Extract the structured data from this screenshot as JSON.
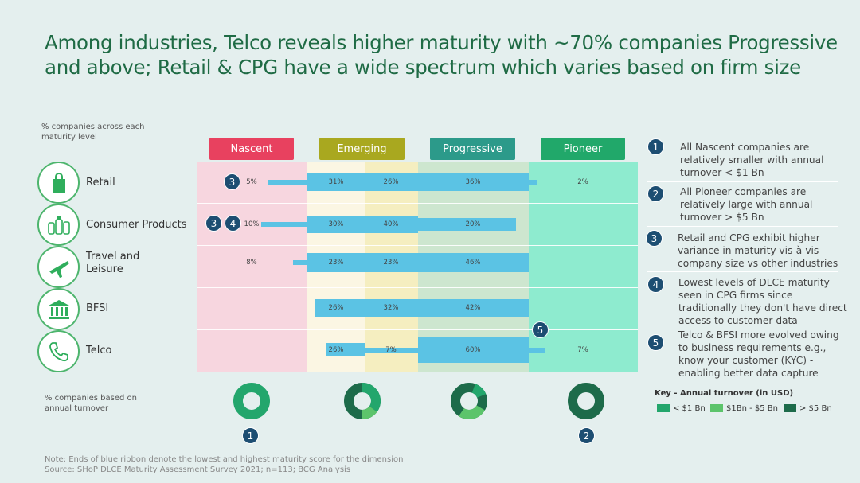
{
  "title": "Among industries, Telco reveals higher maturity with ~70% companies Progressive and above; Retail & CPG have a wide spectrum which varies based on firm size",
  "axis_caption": "% companies across each maturity level",
  "turnover_caption": "% companies based on annual turnover",
  "footnote": "Note: Ends of blue ribbon denote the lowest and highest maturity score for the dimension",
  "source": "Source: SHoP DLCE Maturity Assessment Survey 2021; n=113; BCG Analysis",
  "levels": [
    {
      "label": "Nascent",
      "color": "#e8415f"
    },
    {
      "label": "Emerging",
      "color": "#a9a81f"
    },
    {
      "label": "Progressive",
      "color": "#2c9a8a"
    },
    {
      "label": "Pioneer",
      "color": "#21a86a"
    }
  ],
  "industries": [
    {
      "label": "Retail",
      "icon": "shopping-bag-icon"
    },
    {
      "label": "Consumer Products",
      "icon": "bottles-icon"
    },
    {
      "label": "Travel and Leisure",
      "icon": "airplane-icon"
    },
    {
      "label": "BFSI",
      "icon": "bank-icon"
    },
    {
      "label": "Telco",
      "icon": "phone-icon"
    }
  ],
  "chart_data": {
    "type": "table",
    "columns": [
      "Nascent",
      "Emerging",
      "Emerging",
      "Progressive",
      "Pioneer"
    ],
    "rows": [
      {
        "industry": "Retail",
        "values": [
          "5%",
          "31%",
          "26%",
          "36%",
          "2%"
        ],
        "ribbon_from": 0.16,
        "ribbon_to": 0.77
      },
      {
        "industry": "Consumer Products",
        "values": [
          "10%",
          "30%",
          "40%",
          "20%",
          ""
        ],
        "ribbon_from": 0.14,
        "ribbon_to": 0.72
      },
      {
        "industry": "Travel and Leisure",
        "values": [
          "8%",
          "23%",
          "23%",
          "46%",
          ""
        ],
        "ribbon_from": 0.22,
        "ribbon_to": 0.75
      },
      {
        "industry": "BFSI",
        "values": [
          "",
          "26%",
          "32%",
          "42%",
          ""
        ],
        "ribbon_from": 0.27,
        "ribbon_to": 0.75
      },
      {
        "industry": "Telco",
        "values": [
          "",
          "26%",
          "7%",
          "60%",
          "7%"
        ],
        "ribbon_from": 0.29,
        "ribbon_to": 0.79
      }
    ],
    "turnover_donuts": [
      {
        "level": "Nascent",
        "lt1": 100,
        "mid": 0,
        "gt5": 0
      },
      {
        "level": "Emerging",
        "lt1": 35,
        "mid": 15,
        "gt5": 50
      },
      {
        "level": "Progressive",
        "lt1": 40,
        "mid": 25,
        "gt5": 35
      },
      {
        "level": "Pioneer",
        "lt1": 0,
        "mid": 0,
        "gt5": 100
      }
    ]
  },
  "badges": {
    "b1": "1",
    "b2": "2",
    "b3": "3",
    "b4": "4",
    "b5": "5"
  },
  "notes": [
    {
      "num": "1",
      "text": "All Nascent companies are relatively smaller with annual turnover < $1 Bn"
    },
    {
      "num": "2",
      "text": "All Pioneer companies are relatively large with annual turnover > $5 Bn"
    },
    {
      "num": "3",
      "text": "Retail and CPG exhibit higher variance in maturity vis-à-vis company size vs other industries"
    },
    {
      "num": "4",
      "text": "Lowest levels of DLCE maturity seen in CPG firms since traditionally they don't have direct access to customer data"
    },
    {
      "num": "5",
      "text": "Telco & BFSI more evolved owing to business requirements e.g., know your customer (KYC) - enabling better data capture"
    }
  ],
  "key": {
    "title": "Key - Annual turnover (in USD)",
    "items": [
      {
        "label": "< $1 Bn",
        "color": "#23a66c"
      },
      {
        "label": "$1Bn - $5 Bn",
        "color": "#5cc46b"
      },
      {
        "label": "> $5 Bn",
        "color": "#1d6b4a"
      }
    ]
  }
}
